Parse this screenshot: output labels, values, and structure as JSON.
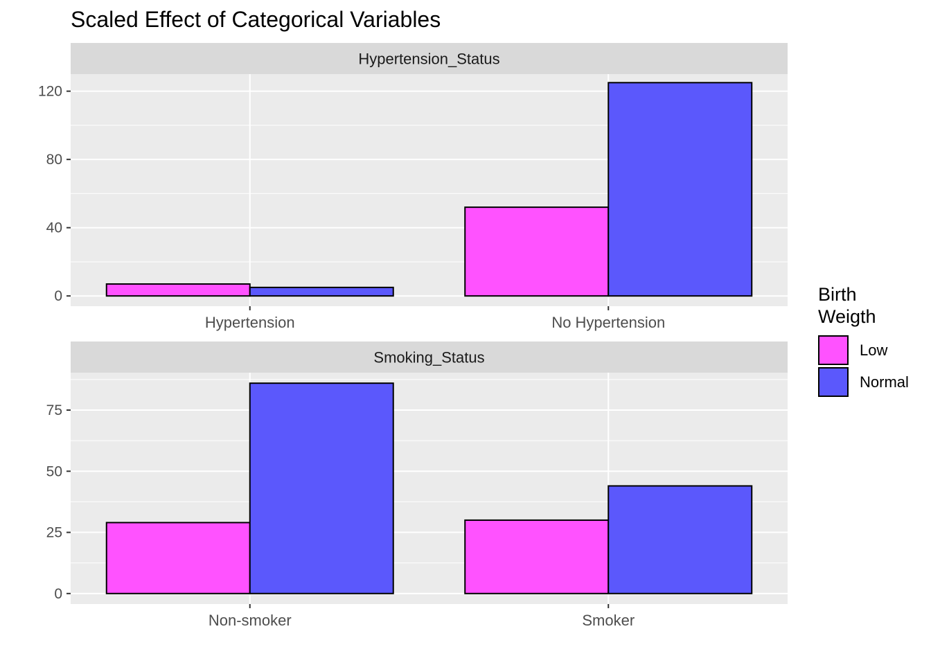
{
  "chart_data": {
    "type": "bar",
    "title": "Scaled Effect of Categorical Variables",
    "legend": {
      "title": "Birth\nWeigth",
      "title_lines": [
        "Birth",
        "Weigth"
      ],
      "position": "right",
      "entries": [
        {
          "label": "Low",
          "color": "#ff52ff"
        },
        {
          "label": "Normal",
          "color": "#5b58fc"
        }
      ]
    },
    "series_names": [
      "Low",
      "Normal"
    ],
    "colors": {
      "Low": "#ff52ff",
      "Normal": "#5b58fc",
      "panel_bg": "#ebebeb",
      "strip_bg": "#d9d9d9",
      "grid": "#ffffff"
    },
    "grid": true,
    "facets": [
      {
        "strip": "Hypertension_Status",
        "categories": [
          "Hypertension",
          "No Hypertension"
        ],
        "series": [
          {
            "name": "Low",
            "values": [
              7,
              52
            ]
          },
          {
            "name": "Normal",
            "values": [
              5,
              125
            ]
          }
        ],
        "ylim": [
          -6,
          130
        ],
        "yticks": [
          0,
          40,
          80,
          120
        ]
      },
      {
        "strip": "Smoking_Status",
        "categories": [
          "Non-smoker",
          "Smoker"
        ],
        "series": [
          {
            "name": "Low",
            "values": [
              29,
              30
            ]
          },
          {
            "name": "Normal",
            "values": [
              86,
              44
            ]
          }
        ],
        "ylim": [
          -4.3,
          90.3
        ],
        "yticks": [
          0,
          25,
          50,
          75
        ]
      }
    ]
  }
}
